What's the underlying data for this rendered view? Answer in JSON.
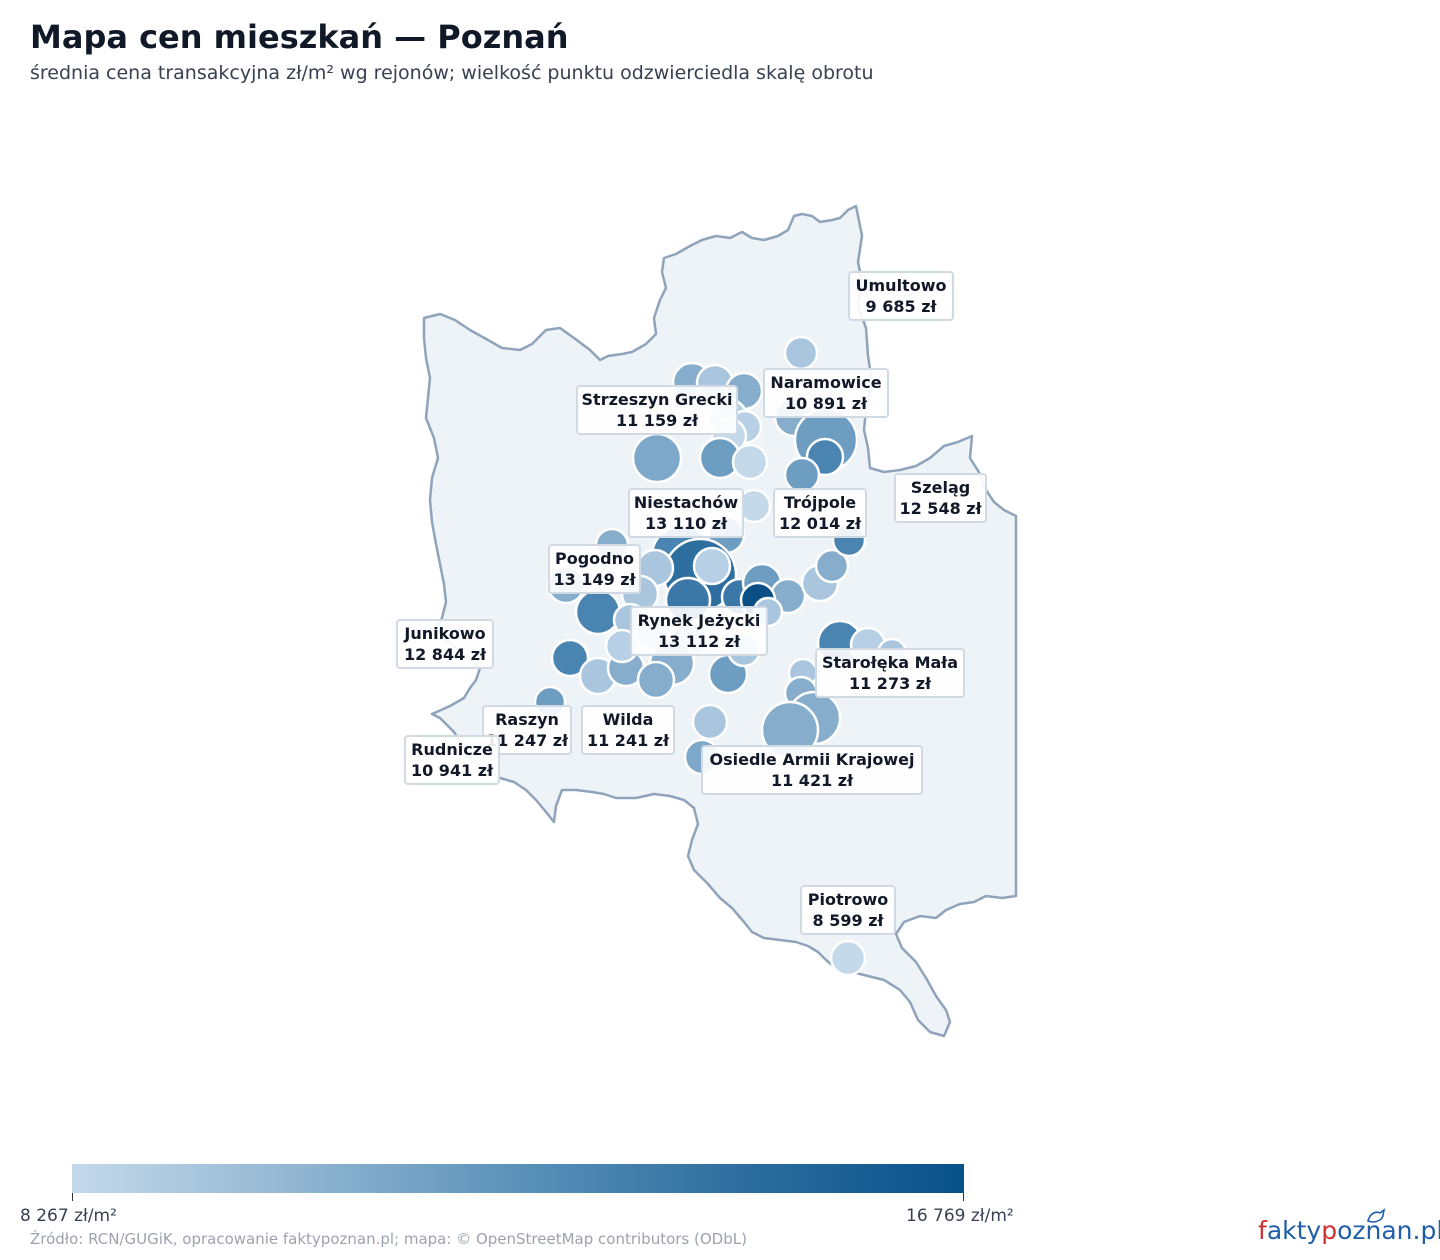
{
  "title": "Mapa cen mieszkań — Poznań",
  "subtitle": "średnia cena transakcyjna zł/m² wg rejonów; wielkość punktu odzwierciedla skalę obrotu",
  "colors": {
    "boundary_fill": "#eef3f8",
    "boundary_stroke": "#8fa3bb",
    "scale_min_color": "#c4d9ea",
    "scale_max_color": "#08518a"
  },
  "labels": [
    {
      "name": "Umultowo",
      "price": "9 685 zł"
    },
    {
      "name": "Naramowice",
      "price": "10 891 zł"
    },
    {
      "name": "Strzeszyn Grecki",
      "price": "11 159 zł"
    },
    {
      "name": "Szeląg",
      "price": "12 548 zł"
    },
    {
      "name": "Niestachów",
      "price": "13 110 zł"
    },
    {
      "name": "Trójpole",
      "price": "12 014 zł"
    },
    {
      "name": "Pogodno",
      "price": "13 149 zł"
    },
    {
      "name": "Rynek Jeżycki",
      "price": "13 112 zł"
    },
    {
      "name": "Junikowo",
      "price": "12 844 zł"
    },
    {
      "name": "Starołęka Mała",
      "price": "11 273 zł"
    },
    {
      "name": "Raszyn",
      "price": "11 247 zł"
    },
    {
      "name": "Wilda",
      "price": "11 241 zł"
    },
    {
      "name": "Rudnicze",
      "price": "10 941 zł"
    },
    {
      "name": "Osiedle Armii Krajowej",
      "price": "11 421 zł"
    },
    {
      "name": "Piotrowo",
      "price": "8 599 zł"
    }
  ],
  "colorbar": {
    "min_label": "8 267 zł/m²",
    "max_label": "16 769 zł/m²",
    "min_value": 8267,
    "max_value": 16769
  },
  "source": "Źródło: RCN/GUGiK, opracowanie faktypoznan.pl; mapa: © OpenStreetMap contributors (ODbL)",
  "brand": {
    "p1": "f",
    "p2": "akty",
    "p3": "p",
    "p4": "oznan.pl"
  }
}
